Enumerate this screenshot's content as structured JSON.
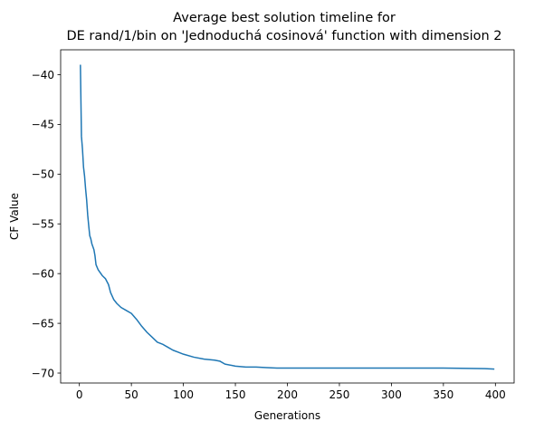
{
  "chart_data": {
    "type": "line",
    "title_lines": [
      "Average best solution timeline for",
      "DE rand/1/bin on 'Jednoduchá cosinová' function with dimension 2"
    ],
    "xlabel": "Generations",
    "ylabel": "CF Value",
    "xlim": [
      -18,
      418
    ],
    "ylim": [
      -71.0,
      -37.5
    ],
    "xticks": [
      0,
      50,
      100,
      150,
      200,
      250,
      300,
      350,
      400
    ],
    "yticks": [
      -70,
      -65,
      -60,
      -55,
      -50,
      -45,
      -40
    ],
    "grid": false,
    "line_color": "#1f77b4",
    "series": [
      {
        "x": [
          1,
          2,
          3,
          4,
          5,
          6,
          7,
          8,
          9,
          10,
          11,
          12,
          13,
          14,
          15,
          16,
          18,
          20,
          22,
          25,
          28,
          30,
          33,
          36,
          40,
          45,
          50,
          55,
          60,
          65,
          70,
          75,
          80,
          85,
          90,
          95,
          100,
          110,
          120,
          130,
          135,
          140,
          150,
          160,
          170,
          180,
          190,
          200,
          250,
          300,
          350,
          390,
          399
        ],
        "y": [
          -39.0,
          -46.2,
          -47.5,
          -49.3,
          -50.2,
          -51.5,
          -52.6,
          -54.1,
          -55.2,
          -56.2,
          -56.5,
          -57.0,
          -57.3,
          -57.6,
          -58.2,
          -59.1,
          -59.6,
          -59.9,
          -60.2,
          -60.5,
          -61.1,
          -61.9,
          -62.6,
          -63.0,
          -63.4,
          -63.7,
          -64.0,
          -64.6,
          -65.3,
          -65.9,
          -66.4,
          -66.9,
          -67.1,
          -67.4,
          -67.7,
          -67.9,
          -68.1,
          -68.4,
          -68.6,
          -68.7,
          -68.8,
          -69.1,
          -69.3,
          -69.4,
          -69.4,
          -69.45,
          -69.5,
          -69.5,
          -69.5,
          -69.5,
          -69.5,
          -69.55,
          -69.6
        ]
      }
    ]
  }
}
